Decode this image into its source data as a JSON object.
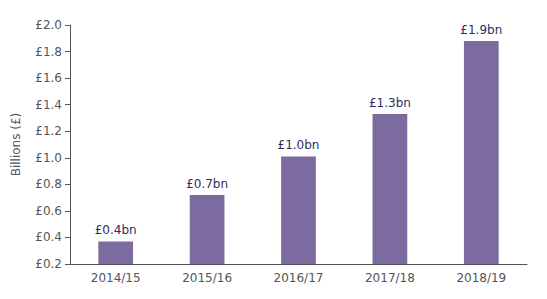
{
  "chart_data": {
    "type": "bar",
    "categories": [
      "2014/15",
      "2015/16",
      "2016/17",
      "2017/18",
      "2018/19"
    ],
    "values": [
      0.37,
      0.72,
      1.01,
      1.33,
      1.88
    ],
    "value_labels": [
      "£0.4bn",
      "£0.7bn",
      "£1.0bn",
      "£1.3bn",
      "£1.9bn"
    ],
    "color": "#7B6B9E",
    "ylabel": "Billions (£)",
    "ylim": [
      0.2,
      2.0
    ],
    "yticks": [
      {
        "value": 0.2,
        "label": "£0.2"
      },
      {
        "value": 0.4,
        "label": "£0.4"
      },
      {
        "value": 0.6,
        "label": "£0.6"
      },
      {
        "value": 0.8,
        "label": "£0.8"
      },
      {
        "value": 1.0,
        "label": "£1.0"
      },
      {
        "value": 1.2,
        "label": "£1.2"
      },
      {
        "value": 1.4,
        "label": "£1.4"
      },
      {
        "value": 1.6,
        "label": "£1.6"
      },
      {
        "value": 1.8,
        "label": "£1.8"
      },
      {
        "value": 2.0,
        "label": "£2.0"
      }
    ],
    "grid": false
  }
}
